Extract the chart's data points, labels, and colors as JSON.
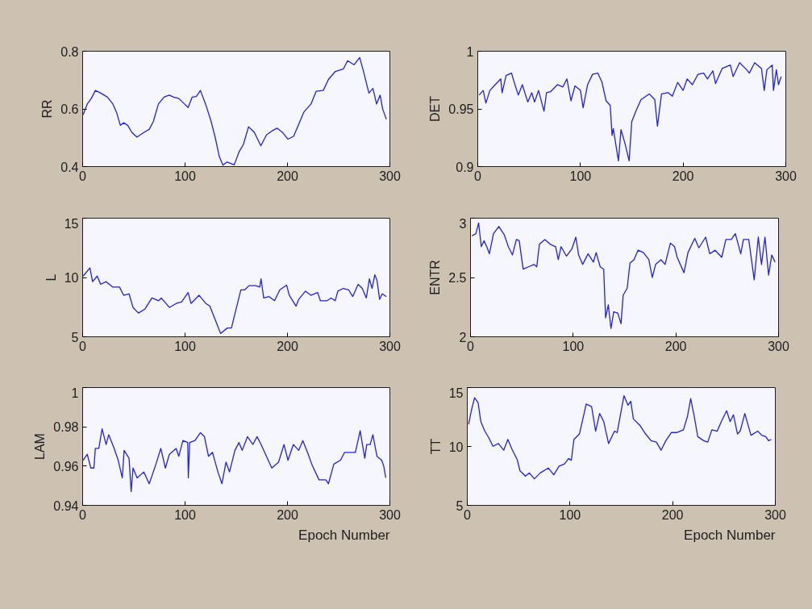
{
  "chart_data": [
    {
      "type": "line",
      "ylabel": "RR",
      "xlim": [
        0,
        300
      ],
      "xticks": [
        0,
        100,
        200,
        300
      ],
      "ylim": [
        0.4,
        0.8
      ],
      "yticks": [
        0.4,
        0.6,
        0.8
      ],
      "grid": false,
      "marker": "none",
      "line_style": "solid",
      "x": [
        0.5,
        4.5,
        8.4,
        12.4,
        17.6,
        24.2,
        29.5,
        33.4,
        36.8,
        40,
        44,
        48,
        53,
        60,
        65,
        69,
        74,
        79.5,
        84.7,
        88.7,
        94,
        98,
        103,
        107,
        111,
        115,
        120,
        125.5,
        129.5,
        133.5,
        137,
        141,
        148,
        153,
        157,
        162,
        167.6,
        174,
        179.5,
        185,
        190,
        195,
        200.5,
        206,
        211,
        216,
        223,
        228,
        235,
        240,
        246.8,
        254.7,
        258.7,
        265,
        270.5,
        274,
        279.5,
        283.5,
        287,
        290.5,
        293,
        296.6
      ],
      "series": [
        {
          "color": "#2020e8",
          "values": [
            0.58,
            0.617,
            0.636,
            0.664,
            0.655,
            0.641,
            0.617,
            0.585,
            0.543,
            0.552,
            0.543,
            0.519,
            0.502,
            0.519,
            0.529,
            0.556,
            0.617,
            0.641,
            0.648,
            0.641,
            0.636,
            0.622,
            0.605,
            0.641,
            0.643,
            0.664,
            0.617,
            0.556,
            0.5,
            0.434,
            0.405,
            0.416,
            0.406,
            0.453,
            0.477,
            0.538,
            0.519,
            0.472,
            0.51,
            0.524,
            0.533,
            0.519,
            0.495,
            0.505,
            0.547,
            0.589,
            0.617,
            0.661,
            0.664,
            0.702,
            0.73,
            0.739,
            0.767,
            0.753,
            0.778,
            0.734,
            0.655,
            0.671,
            0.617,
            0.648,
            0.599,
            0.564
          ]
        }
      ]
    },
    {
      "type": "line",
      "ylabel": "DET",
      "xlim": [
        0,
        300
      ],
      "xticks": [
        0,
        100,
        200,
        300
      ],
      "ylim": [
        0.9,
        1
      ],
      "yticks": [
        0.9,
        0.95,
        1
      ],
      "grid": false,
      "marker": "none",
      "line_style": "solid",
      "x": [
        1.3,
        5.3,
        7.9,
        11.8,
        17,
        22.4,
        23.7,
        27.6,
        32.9,
        35.5,
        39.5,
        43.4,
        48.7,
        52.6,
        55.3,
        59.2,
        64.5,
        67,
        71,
        77.6,
        82.9,
        86.8,
        90.8,
        94.7,
        100,
        102.6,
        107,
        111.8,
        117,
        121,
        125,
        129,
        130.8,
        132,
        137,
        139.5,
        143.4,
        147.4,
        150,
        154,
        159,
        167,
        172.4,
        175,
        179,
        185.5,
        189.5,
        194.7,
        200,
        204,
        209,
        214.5,
        220,
        223.7,
        229,
        231.6,
        238,
        246,
        248.7,
        255,
        261.8,
        264.5,
        269.7,
        276.3,
        279,
        281.6,
        286.8,
        288,
        290.8,
        292.9,
        295.5
      ],
      "series": [
        {
          "color": "#2020e8",
          "values": [
            0.962,
            0.966,
            0.955,
            0.966,
            0.971,
            0.976,
            0.964,
            0.979,
            0.981,
            0.973,
            0.962,
            0.971,
            0.956,
            0.964,
            0.956,
            0.966,
            0.948,
            0.964,
            0.965,
            0.971,
            0.969,
            0.976,
            0.957,
            0.97,
            0.966,
            0.951,
            0.971,
            0.98,
            0.981,
            0.973,
            0.957,
            0.953,
            0.927,
            0.933,
            0.905,
            0.932,
            0.92,
            0.905,
            0.939,
            0.948,
            0.958,
            0.963,
            0.958,
            0.935,
            0.963,
            0.964,
            0.961,
            0.973,
            0.966,
            0.976,
            0.971,
            0.98,
            0.981,
            0.976,
            0.983,
            0.972,
            0.985,
            0.988,
            0.978,
            0.99,
            0.984,
            0.981,
            0.99,
            0.985,
            0.966,
            0.984,
            0.988,
            0.966,
            0.984,
            0.971,
            0.978
          ]
        }
      ]
    },
    {
      "type": "line",
      "ylabel": "L",
      "xlim": [
        0,
        300
      ],
      "xticks": [
        0,
        100,
        200,
        300
      ],
      "ylim": [
        5,
        15
      ],
      "yticks": [
        5,
        10,
        15
      ],
      "grid": false,
      "marker": "none",
      "line_style": "solid",
      "x": [
        0.5,
        7.1,
        9.7,
        14.2,
        17.6,
        22.9,
        29.5,
        36,
        40,
        45.3,
        49.2,
        54.5,
        61,
        67.6,
        74.2,
        76.8,
        84.7,
        91.3,
        96.6,
        103,
        105.8,
        113.7,
        120.3,
        124.2,
        129.5,
        134.7,
        141.3,
        145.3,
        149.2,
        154.5,
        158.4,
        162.4,
        169,
        172.9,
        174.2,
        176.8,
        182,
        187.4,
        192.6,
        199.2,
        201.8,
        208.4,
        211,
        217.6,
        222.9,
        229.5,
        232.1,
        238.7,
        242.6,
        246.6,
        249.2,
        254.5,
        259.7,
        263.7,
        269,
        273,
        277,
        280,
        282.6,
        285.3,
        287.4,
        290,
        292.6,
        296.6
      ],
      "series": [
        {
          "color": "#2020e8",
          "values": [
            10.12,
            10.81,
            9.65,
            10.12,
            9.42,
            9.65,
            9.19,
            9.19,
            8.5,
            8.62,
            7.47,
            7.0,
            7.35,
            8.27,
            8.04,
            8.27,
            7.47,
            7.81,
            7.93,
            8.73,
            7.81,
            8.5,
            7.81,
            7.58,
            6.43,
            5.28,
            5.74,
            5.74,
            7.12,
            8.96,
            8.96,
            9.31,
            9.31,
            9.19,
            9.88,
            8.27,
            8.39,
            8.04,
            8.96,
            9.35,
            8.5,
            7.58,
            8.16,
            8.85,
            8.5,
            8.73,
            8.04,
            8.04,
            8.27,
            8.04,
            8.85,
            9.08,
            8.96,
            8.39,
            9.42,
            9.08,
            8.27,
            9.88,
            9.08,
            10.23,
            9.77,
            8.16,
            8.62,
            8.39
          ]
        }
      ]
    },
    {
      "type": "line",
      "ylabel": "ENTR",
      "xlim": [
        0,
        300
      ],
      "xticks": [
        0,
        100,
        200,
        300
      ],
      "ylim": [
        2,
        3
      ],
      "yticks": [
        2,
        2.5,
        3
      ],
      "grid": false,
      "marker": "none",
      "line_style": "solid",
      "x": [
        1.3,
        5.3,
        7.9,
        10.5,
        13.2,
        15.8,
        18.4,
        22.4,
        27.6,
        32.9,
        36.8,
        40.8,
        44.7,
        47.4,
        51.3,
        56.6,
        61.8,
        64.5,
        67.1,
        72.4,
        77.6,
        82.9,
        85.5,
        88.2,
        93.4,
        98.7,
        102.6,
        105.3,
        109.2,
        114.5,
        119.7,
        122.4,
        126.3,
        129.7,
        131.6,
        134.2,
        136.8,
        139.5,
        143.4,
        146.6,
        148.7,
        152.6,
        155.3,
        159.2,
        163.2,
        168.4,
        173.7,
        177,
        180.3,
        185.5,
        189.5,
        194.7,
        198.7,
        201.3,
        207.9,
        211.8,
        218.4,
        222.4,
        229,
        233,
        238.2,
        244.7,
        248.7,
        254,
        257.9,
        263.2,
        265.8,
        271,
        276.3,
        280.3,
        283.4,
        286.8,
        290.3,
        293.4,
        296.6
      ],
      "series": [
        {
          "color": "#2020e8",
          "values": [
            2.85,
            2.87,
            2.96,
            2.76,
            2.81,
            2.76,
            2.7,
            2.87,
            2.93,
            2.86,
            2.76,
            2.69,
            2.82,
            2.81,
            2.57,
            2.59,
            2.61,
            2.59,
            2.78,
            2.82,
            2.78,
            2.76,
            2.65,
            2.76,
            2.68,
            2.74,
            2.84,
            2.69,
            2.61,
            2.7,
            2.63,
            2.71,
            2.59,
            2.57,
            2.16,
            2.27,
            2.07,
            2.21,
            2.2,
            2.11,
            2.35,
            2.41,
            2.62,
            2.65,
            2.73,
            2.71,
            2.65,
            2.5,
            2.61,
            2.65,
            2.61,
            2.79,
            2.76,
            2.67,
            2.54,
            2.71,
            2.83,
            2.75,
            2.84,
            2.7,
            2.73,
            2.67,
            2.82,
            2.82,
            2.87,
            2.7,
            2.82,
            2.82,
            2.48,
            2.84,
            2.61,
            2.84,
            2.52,
            2.69,
            2.63
          ]
        }
      ]
    },
    {
      "type": "line",
      "ylabel": "LAM",
      "xlabel": "Epoch Number",
      "xlim": [
        0,
        300
      ],
      "xticks": [
        0,
        100,
        200,
        300
      ],
      "ylim": [
        0.94,
        1
      ],
      "yticks": [
        0.94,
        0.96,
        0.98,
        1
      ],
      "grid": false,
      "marker": "none",
      "line_style": "solid",
      "x": [
        0.5,
        4.5,
        8,
        11,
        12.4,
        15.8,
        19,
        22.9,
        25.5,
        30.8,
        34.7,
        38.7,
        40.5,
        45.3,
        47.4,
        49.2,
        53.2,
        59.7,
        65,
        71.6,
        76.3,
        80.8,
        84.7,
        91.3,
        93.9,
        97.9,
        102.6,
        103.2,
        104.5,
        109.7,
        115,
        118.9,
        122.9,
        126.8,
        132.1,
        136,
        140,
        143.4,
        148.7,
        152.6,
        155.8,
        161,
        166.3,
        170.3,
        174.2,
        179.5,
        184.7,
        191.3,
        196.6,
        200.5,
        205.8,
        211,
        215,
        220.3,
        223.7,
        230.8,
        237.4,
        240,
        245.3,
        251.8,
        255.8,
        261,
        266.3,
        271,
        275.5,
        277.4,
        280.8,
        283.4,
        287.4,
        292,
        294,
        296
      ],
      "series": [
        {
          "color": "#2020e8",
          "values": [
            0.963,
            0.966,
            0.959,
            0.959,
            0.969,
            0.969,
            0.979,
            0.971,
            0.976,
            0.969,
            0.963,
            0.954,
            0.968,
            0.964,
            0.947,
            0.959,
            0.954,
            0.957,
            0.951,
            0.961,
            0.969,
            0.959,
            0.966,
            0.969,
            0.965,
            0.973,
            0.972,
            0.954,
            0.972,
            0.973,
            0.977,
            0.975,
            0.965,
            0.967,
            0.957,
            0.951,
            0.962,
            0.957,
            0.968,
            0.972,
            0.968,
            0.975,
            0.971,
            0.975,
            0.971,
            0.965,
            0.959,
            0.962,
            0.971,
            0.963,
            0.971,
            0.968,
            0.973,
            0.966,
            0.961,
            0.953,
            0.953,
            0.951,
            0.961,
            0.963,
            0.967,
            0.967,
            0.967,
            0.978,
            0.964,
            0.971,
            0.971,
            0.976,
            0.965,
            0.963,
            0.96,
            0.954
          ]
        }
      ]
    },
    {
      "type": "line",
      "ylabel": "TT",
      "xlabel": "Epoch Number",
      "xlim": [
        0,
        300
      ],
      "xticks": [
        0,
        100,
        200,
        300
      ],
      "ylim": [
        5,
        15
      ],
      "yticks": [
        5,
        10,
        15
      ],
      "grid": false,
      "marker": "none",
      "line_style": "solid",
      "x": [
        1.3,
        3.9,
        7.1,
        10.5,
        13.2,
        17.1,
        21.1,
        25,
        30.3,
        35.5,
        39.5,
        43.4,
        48.7,
        51.3,
        56.6,
        60.5,
        65.3,
        71,
        78.9,
        84.2,
        89.5,
        94.7,
        98.7,
        101.3,
        103.9,
        109.2,
        113.2,
        115.8,
        121.1,
        125,
        128.9,
        132.9,
        137.6,
        143.4,
        146,
        152.6,
        156.6,
        159.2,
        161.8,
        168.4,
        173.7,
        179,
        184.2,
        188.7,
        193.4,
        198.7,
        203.9,
        210.5,
        214.5,
        217.6,
        221,
        224.5,
        230.3,
        234.2,
        238.2,
        243.4,
        247.4,
        252.6,
        256,
        259.2,
        263.2,
        265.8,
        270.3,
        276.3,
        282.9,
        286.8,
        290.8,
        293.4,
        296
      ],
      "series": [
        {
          "color": "#2020e8",
          "values": [
            11.88,
            13.03,
            14.14,
            13.73,
            12.11,
            11.3,
            10.72,
            10.02,
            10.25,
            9.68,
            10.6,
            9.79,
            8.87,
            7.94,
            7.48,
            7.75,
            7.25,
            7.75,
            8.17,
            7.59,
            8.33,
            8.52,
            8.98,
            8.82,
            10.6,
            11.06,
            12.57,
            13.61,
            13.38,
            11.3,
            12.8,
            12.11,
            10.25,
            11.3,
            11.18,
            14.31,
            13.5,
            13.84,
            12.34,
            11.76,
            11.06,
            10.49,
            10.37,
            9.68,
            10.49,
            11.18,
            11.18,
            11.41,
            12.57,
            14.07,
            12.57,
            10.83,
            10.49,
            10.37,
            11.41,
            11.3,
            12.11,
            13.03,
            12.11,
            12.69,
            11.06,
            11.3,
            12.8,
            10.95,
            11.3,
            10.95,
            10.83,
            10.49,
            10.6
          ]
        }
      ]
    }
  ]
}
